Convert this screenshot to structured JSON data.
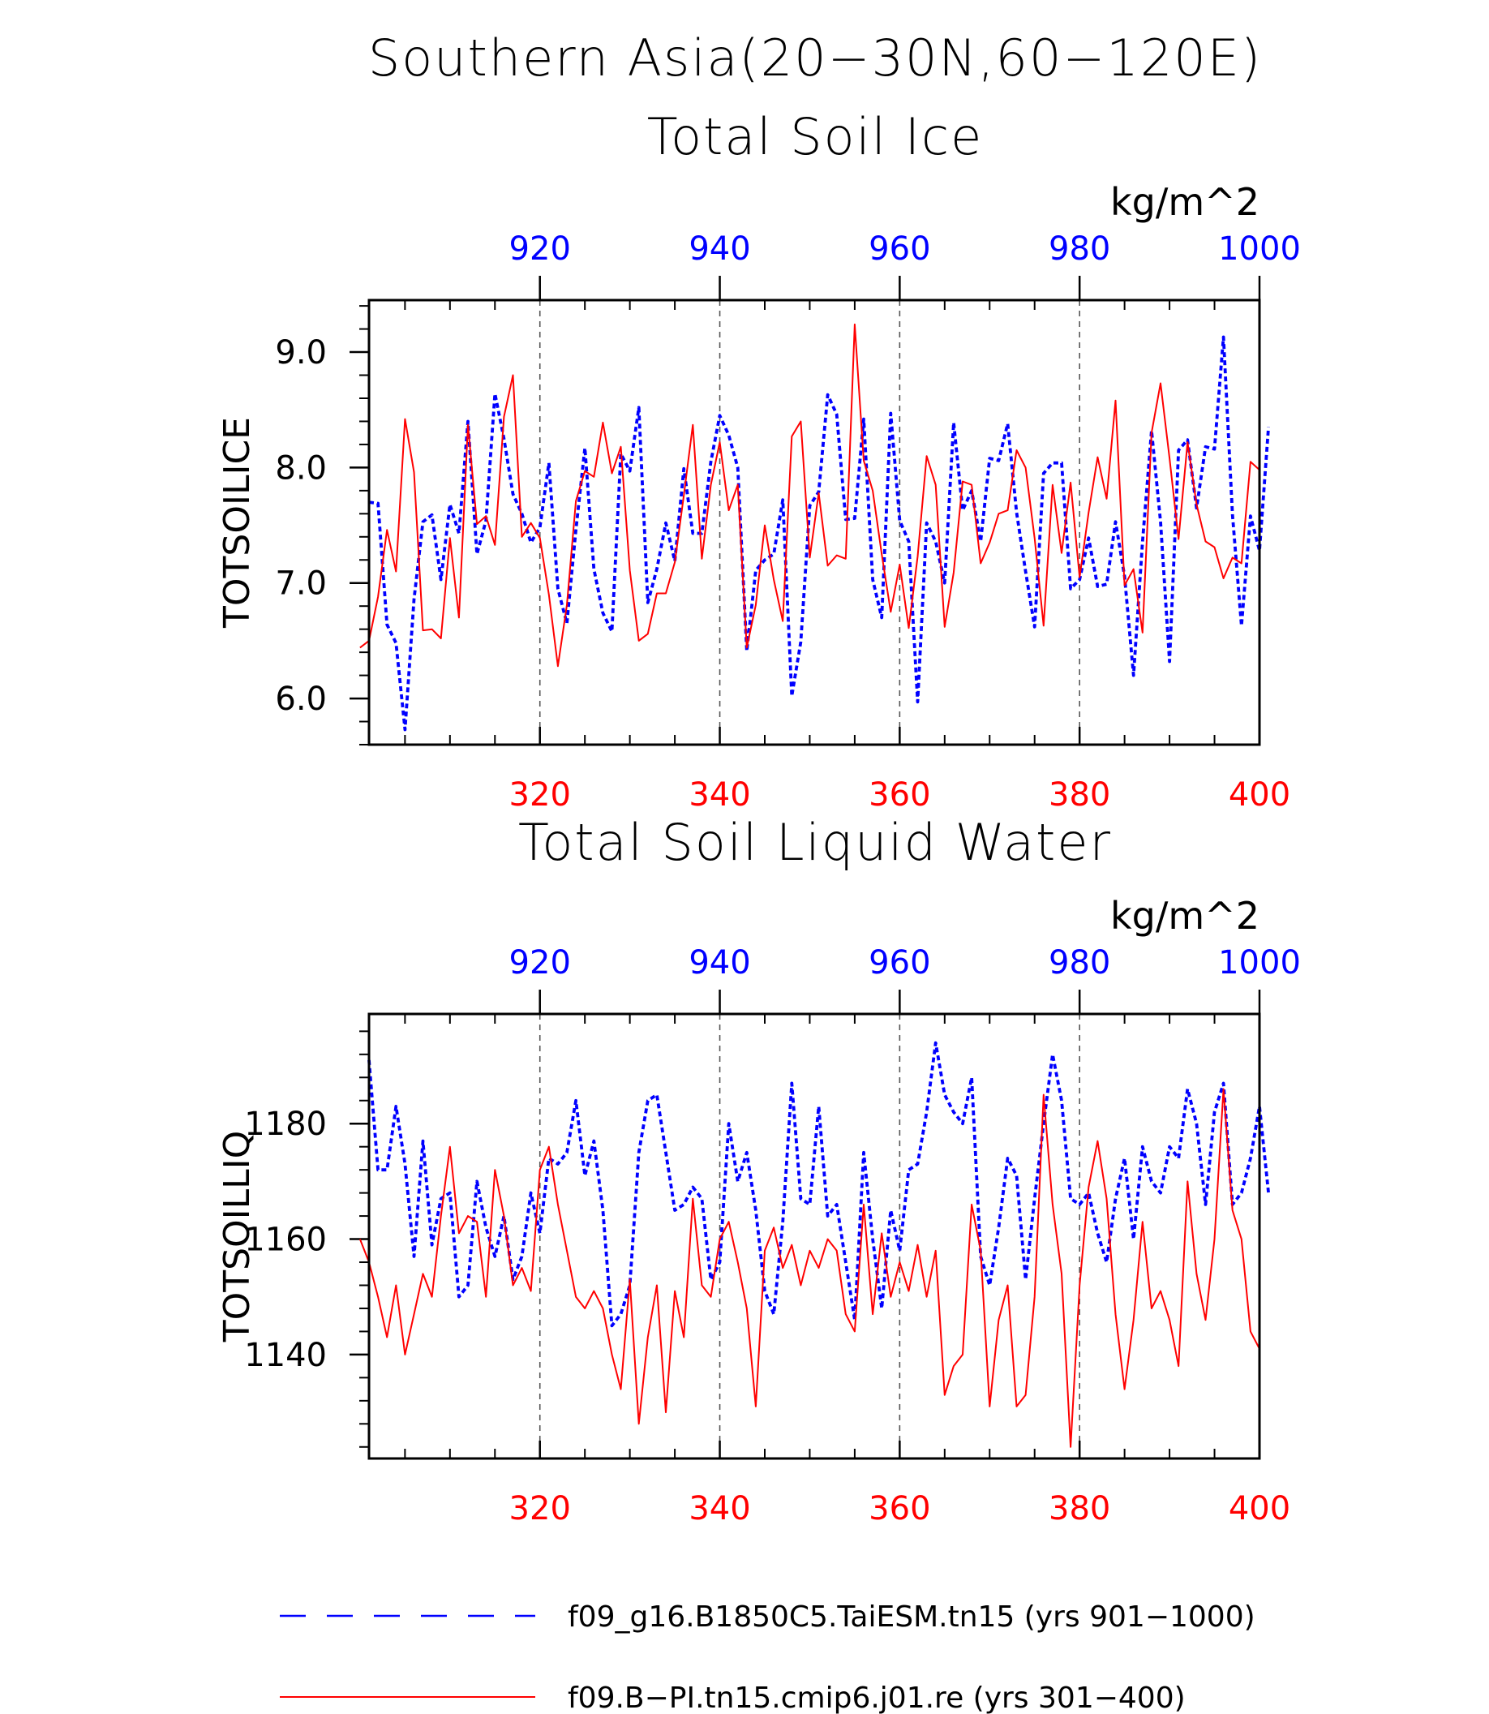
{
  "title": "Southern Asia(20−30N,60−120E)",
  "legend": {
    "entries": [
      {
        "label": "f09_g16.B1850C5.TaiESM.tn15 (yrs 901−1000)",
        "color": "#0000ff",
        "style": "dashed"
      },
      {
        "label": "f09.B−PI.tn15.cmip6.j01.re (yrs 301−400)",
        "color": "#ff0000",
        "style": "solid"
      }
    ],
    "placement": "bottom"
  },
  "chart_data": [
    {
      "type": "line",
      "title": "Total Soil Ice",
      "ylabel": "TOTSOILICE",
      "units": "kg/m^2",
      "ylim": [
        5.6,
        9.45
      ],
      "yticks": [
        6.0,
        7.0,
        8.0,
        9.0
      ],
      "ytick_labels": [
        "6.0",
        "7.0",
        "8.0",
        "9.0"
      ],
      "xlim_bottom": [
        301,
        400
      ],
      "xticks_bottom": [
        320,
        340,
        360,
        380,
        400
      ],
      "xlim_top": [
        901,
        1000
      ],
      "xticks_top": [
        920,
        940,
        960,
        980,
        1000
      ],
      "grid": "vertical dashed at major ticks",
      "series": [
        {
          "name": "f09_g16.B1850C5.TaiESM.tn15 (yrs 901−1000)",
          "color": "#0000ff",
          "style": "dashed",
          "axis": "top",
          "x_start": 901,
          "values": [
            7.7,
            7.69,
            6.64,
            6.48,
            5.73,
            6.86,
            7.53,
            7.59,
            7.03,
            7.68,
            7.43,
            8.4,
            7.25,
            7.54,
            8.64,
            8.25,
            7.77,
            7.6,
            7.35,
            7.48,
            8.04,
            6.95,
            6.65,
            7.46,
            8.17,
            7.12,
            6.74,
            6.58,
            8.12,
            7.97,
            8.52,
            6.83,
            7.12,
            7.52,
            7.19,
            7.99,
            7.43,
            7.43,
            8.05,
            8.45,
            8.28,
            8.0,
            6.41,
            7.11,
            7.2,
            7.25,
            7.72,
            6.02,
            6.49,
            7.67,
            7.79,
            8.63,
            8.46,
            7.55,
            7.56,
            8.42,
            7.03,
            6.7,
            8.47,
            7.54,
            7.36,
            5.97,
            7.52,
            7.36,
            7.0,
            8.39,
            7.63,
            7.8,
            7.36,
            8.08,
            8.06,
            8.38,
            7.61,
            7.1,
            6.62,
            7.95,
            8.04,
            8.04,
            6.95,
            7.03,
            7.39,
            6.97,
            6.99,
            7.53,
            7.06,
            6.2,
            7.36,
            8.32,
            7.53,
            6.32,
            8.15,
            8.24,
            7.65,
            8.18,
            8.16,
            9.13,
            7.59,
            6.63,
            7.58,
            7.28,
            8.35
          ]
        },
        {
          "name": "f09.B−PI.tn15.cmip6.j01.re (yrs 301−400)",
          "color": "#ff0000",
          "style": "solid",
          "axis": "bottom",
          "x_start": 300,
          "values": [
            6.44,
            6.5,
            6.88,
            7.46,
            7.1,
            8.42,
            7.96,
            6.59,
            6.6,
            6.52,
            7.39,
            6.7,
            8.37,
            7.51,
            7.58,
            7.33,
            8.44,
            8.8,
            7.4,
            7.52,
            7.39,
            6.9,
            6.28,
            6.81,
            7.71,
            7.97,
            7.92,
            8.39,
            7.95,
            8.18,
            7.11,
            6.5,
            6.56,
            6.91,
            6.91,
            7.18,
            7.76,
            8.37,
            7.21,
            7.85,
            8.22,
            7.63,
            7.85,
            6.44,
            6.81,
            7.5,
            7.03,
            6.67,
            8.27,
            8.4,
            7.22,
            7.78,
            7.15,
            7.24,
            7.21,
            9.24,
            8.06,
            7.8,
            7.25,
            6.75,
            7.16,
            6.61,
            7.23,
            8.1,
            7.85,
            6.62,
            7.09,
            7.88,
            7.85,
            7.17,
            7.35,
            7.6,
            7.63,
            8.15,
            8.0,
            7.39,
            6.63,
            7.85,
            7.26,
            7.87,
            7.05,
            7.61,
            8.09,
            7.73,
            8.58,
            6.98,
            7.12,
            6.57,
            8.3,
            8.73,
            8.08,
            7.38,
            8.22,
            7.68,
            7.36,
            7.31,
            7.04,
            7.22,
            7.17,
            8.05,
            7.98
          ]
        }
      ]
    },
    {
      "type": "line",
      "title": "Total Soil Liquid Water",
      "ylabel": "TOTSOILLIQ",
      "units": "kg/m^2",
      "ylim": [
        1122,
        1199
      ],
      "yticks": [
        1140,
        1160,
        1180
      ],
      "ytick_labels": [
        "1140",
        "1160",
        "1180"
      ],
      "xlim_bottom": [
        301,
        400
      ],
      "xticks_bottom": [
        320,
        340,
        360,
        380,
        400
      ],
      "xlim_top": [
        901,
        1000
      ],
      "xticks_top": [
        920,
        940,
        960,
        980,
        1000
      ],
      "grid": "vertical dashed at major ticks",
      "series": [
        {
          "name": "f09_g16.B1850C5.TaiESM.tn15 (yrs 901−1000)",
          "color": "#0000ff",
          "style": "dashed",
          "axis": "top",
          "x_start": 901,
          "values": [
            1191,
            1172,
            1172,
            1183,
            1173,
            1157,
            1177,
            1159,
            1167,
            1168,
            1150,
            1152,
            1170,
            1162,
            1157,
            1164,
            1153,
            1157,
            1168,
            1161,
            1174,
            1173,
            1175,
            1184,
            1171,
            1177,
            1165,
            1145,
            1147,
            1152,
            1175,
            1184,
            1185,
            1175,
            1165,
            1166,
            1169,
            1167,
            1153,
            1156,
            1180,
            1170,
            1175,
            1165,
            1151,
            1147,
            1163,
            1187,
            1167,
            1166,
            1183,
            1164,
            1166,
            1156,
            1146,
            1175,
            1160,
            1148,
            1165,
            1158,
            1172,
            1173,
            1182,
            1194,
            1185,
            1182,
            1180,
            1188,
            1157,
            1152,
            1162,
            1174,
            1171,
            1153,
            1167,
            1180,
            1192,
            1184,
            1167,
            1166,
            1168,
            1161,
            1156,
            1167,
            1174,
            1160,
            1176,
            1170,
            1168,
            1176,
            1174,
            1186,
            1180,
            1166,
            1182,
            1187,
            1166,
            1168,
            1174,
            1183,
            1168
          ]
        },
        {
          "name": "f09.B−PI.tn15.cmip6.j01.re (yrs 301−400)",
          "color": "#ff0000",
          "style": "solid",
          "axis": "bottom",
          "x_start": 300,
          "values": [
            1160,
            1156,
            1150,
            1143,
            1152,
            1140,
            1147,
            1154,
            1150,
            1164,
            1176,
            1161,
            1164,
            1163,
            1150,
            1172,
            1164,
            1152,
            1155,
            1151,
            1172,
            1176,
            1166,
            1158,
            1150,
            1148,
            1151,
            1148,
            1140,
            1134,
            1153,
            1128,
            1143,
            1152,
            1130,
            1151,
            1143,
            1167,
            1152,
            1150,
            1160,
            1163,
            1156,
            1148,
            1131,
            1158,
            1162,
            1155,
            1159,
            1152,
            1158,
            1155,
            1160,
            1158,
            1147,
            1144,
            1166,
            1147,
            1161,
            1150,
            1156,
            1151,
            1159,
            1150,
            1158,
            1133,
            1138,
            1140,
            1166,
            1158,
            1131,
            1146,
            1152,
            1131,
            1133,
            1150,
            1185,
            1166,
            1154,
            1124,
            1152,
            1169,
            1177,
            1167,
            1147,
            1134,
            1146,
            1163,
            1148,
            1151,
            1146,
            1138,
            1170,
            1154,
            1146,
            1160,
            1186,
            1165,
            1160,
            1144,
            1141
          ]
        }
      ]
    }
  ]
}
